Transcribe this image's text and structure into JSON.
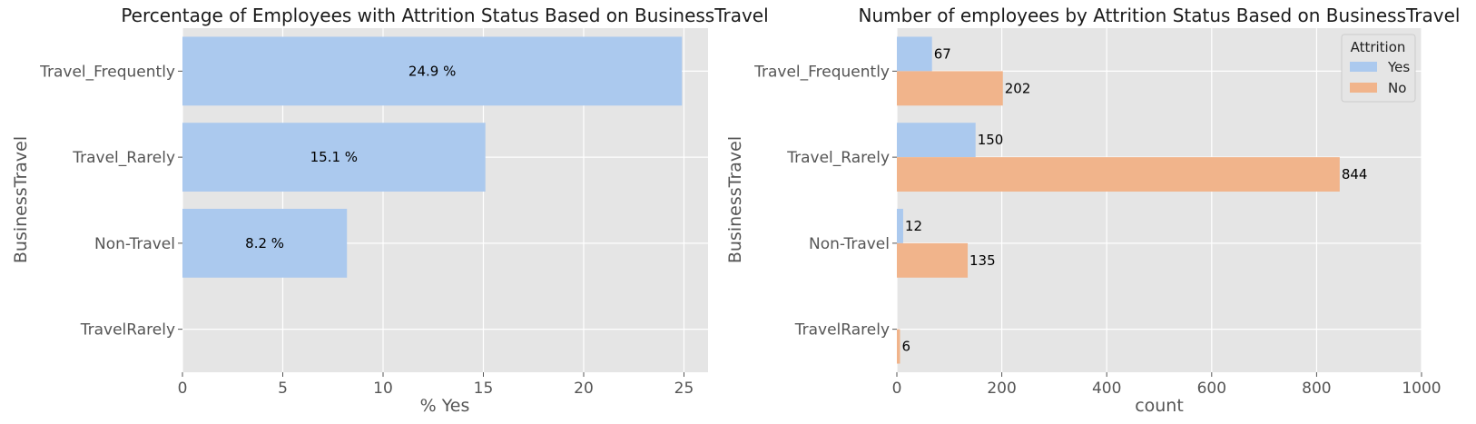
{
  "chart_data": [
    {
      "type": "bar",
      "orientation": "horizontal",
      "title": "Percentage of Employees with Attrition Status Based on BusinessTravel",
      "xlabel": "% Yes",
      "ylabel": "BusinessTravel",
      "categories": [
        "Travel_Frequently",
        "Travel_Rarely",
        "Non-Travel",
        "TravelRarely"
      ],
      "values": [
        24.9,
        15.1,
        8.2,
        null
      ],
      "value_labels": [
        "24.9 %",
        "15.1 %",
        "8.2 %",
        ""
      ],
      "xlim": [
        0,
        26.2
      ],
      "xticks": [
        0,
        5,
        10,
        15,
        20,
        25
      ],
      "grid": true,
      "colors": {
        "bar": "#abc9ee",
        "background": "#e5e5e5",
        "grid": "#ffffff"
      }
    },
    {
      "type": "bar",
      "orientation": "horizontal",
      "title": "Number of employees by Attrition Status Based on BusinessTravel",
      "xlabel": "count",
      "ylabel": "BusinessTravel",
      "categories": [
        "Travel_Frequently",
        "Travel_Rarely",
        "Non-Travel",
        "TravelRarely"
      ],
      "series": [
        {
          "name": "Yes",
          "values": [
            67,
            150,
            12,
            null
          ],
          "labels": [
            "67",
            "150",
            "12",
            ""
          ],
          "color": "#abc9ee"
        },
        {
          "name": "No",
          "values": [
            202,
            844,
            135,
            6
          ],
          "labels": [
            "202",
            "844",
            "135",
            "6"
          ],
          "color": "#f1b48b"
        }
      ],
      "xlim": [
        0,
        1000
      ],
      "xticks": [
        0,
        200,
        400,
        600,
        800,
        1000
      ],
      "legend": {
        "title": "Attrition",
        "position": "top-right"
      },
      "grid": true,
      "colors": {
        "background": "#e5e5e5",
        "grid": "#ffffff"
      }
    }
  ]
}
